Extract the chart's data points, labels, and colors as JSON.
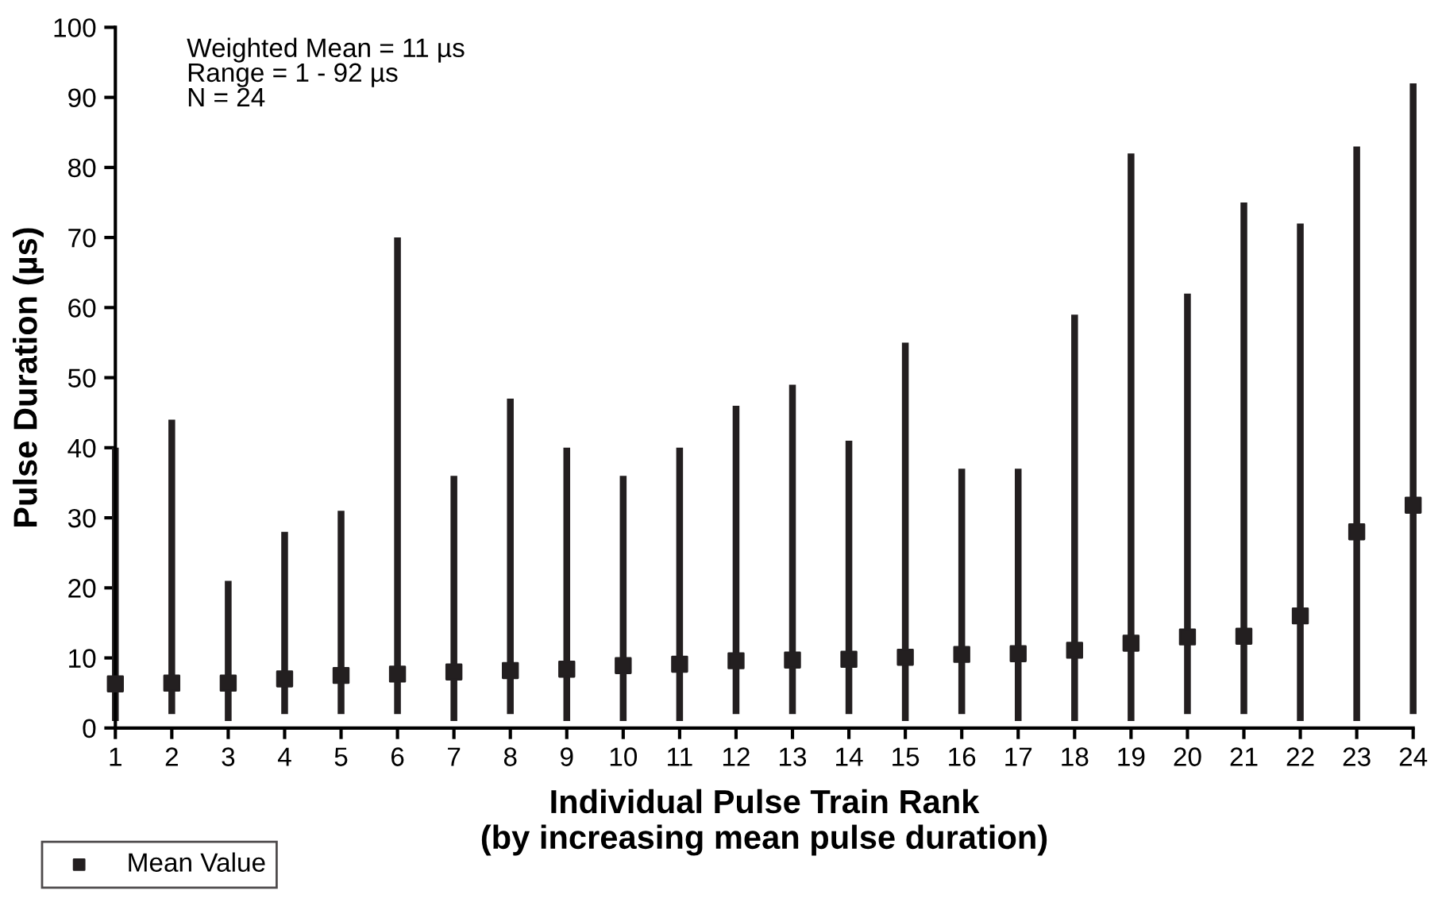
{
  "chart_data": {
    "type": "bar",
    "xlabel": "Individual Pulse Train Rank\n(by increasing mean pulse duration)",
    "ylabel": "Pulse Duration (µs)",
    "annotations": [
      "Weighted Mean = 11 µs",
      "Range = 1 - 92 µs",
      "N = 24"
    ],
    "categories": [
      "1",
      "2",
      "3",
      "4",
      "5",
      "6",
      "7",
      "8",
      "9",
      "10",
      "11",
      "12",
      "13",
      "14",
      "15",
      "16",
      "17",
      "18",
      "19",
      "20",
      "21",
      "22",
      "23",
      "24"
    ],
    "series": [
      {
        "color": "#231f20",
        "base": [
          1,
          2,
          1,
          2,
          2,
          2,
          1,
          2,
          1,
          1,
          1,
          2,
          2,
          2,
          1,
          2,
          1,
          1,
          1,
          2,
          2,
          1,
          1,
          2
        ],
        "values": [
          39,
          42,
          20,
          26,
          29,
          68,
          35,
          45,
          39,
          35,
          39,
          44,
          47,
          39,
          54,
          35,
          36,
          58,
          81,
          60,
          73,
          71,
          82,
          90
        ]
      },
      {
        "type": "scatter",
        "name": "Mean Value",
        "color": "#231f20",
        "marker": "square",
        "values": [
          6.3,
          6.4,
          6.4,
          7,
          7.5,
          7.7,
          8,
          8.2,
          8.4,
          8.9,
          9.1,
          9.6,
          9.7,
          9.8,
          10.1,
          10.5,
          10.6,
          11.1,
          12.1,
          13,
          13.1,
          16,
          28,
          31.8
        ]
      }
    ],
    "ylim": [
      0,
      100
    ],
    "yticks": [
      0,
      10,
      20,
      30,
      40,
      50,
      60,
      70,
      80,
      90,
      100
    ],
    "grid": false,
    "legend": "bottom left"
  }
}
